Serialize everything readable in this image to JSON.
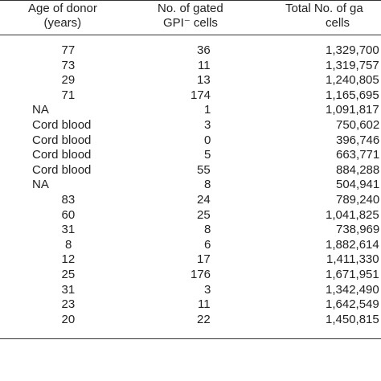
{
  "table": {
    "header": [
      [
        "Age of donor",
        "(years)"
      ],
      [
        "No. of gated",
        "GPI⁻ cells"
      ],
      [
        "Total No. of ga",
        "cells"
      ]
    ],
    "rows": [
      [
        "77",
        "36",
        "1,329,700"
      ],
      [
        "73",
        "11",
        "1,319,757"
      ],
      [
        "29",
        "13",
        "1,240,805"
      ],
      [
        "71",
        "174",
        "1,165,695"
      ],
      [
        "NA",
        "1",
        "1,091,817"
      ],
      [
        "Cord blood",
        "3",
        "750,602"
      ],
      [
        "Cord blood",
        "0",
        "396,746"
      ],
      [
        "Cord blood",
        "5",
        "663,771"
      ],
      [
        "Cord blood",
        "55",
        "884,288"
      ],
      [
        "NA",
        "8",
        "504,941"
      ],
      [
        "83",
        "24",
        "789,240"
      ],
      [
        "60",
        "25",
        "1,041,825"
      ],
      [
        "31",
        "8",
        "738,969"
      ],
      [
        "8",
        "6",
        "1,882,614"
      ],
      [
        "12",
        "17",
        "1,411,330"
      ],
      [
        "25",
        "176",
        "1,671,951"
      ],
      [
        "31",
        "3",
        "1,342,490"
      ],
      [
        "23",
        "11",
        "1,642,549"
      ],
      [
        "20",
        "22",
        "1,450,815"
      ]
    ]
  }
}
